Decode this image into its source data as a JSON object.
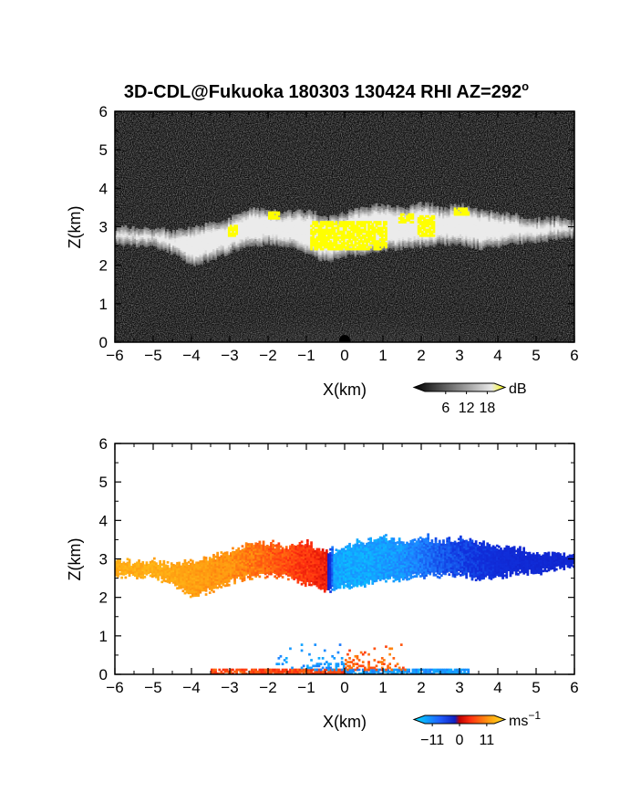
{
  "title": "3D-CDL@Fukuoka 180303 130424 RHI AZ=292",
  "title_superscript": "o",
  "colors": {
    "background_top": "#0b0b0b",
    "echo_gray": "#d8d8d8",
    "echo_yellow": "#ffff00",
    "vel_cyan": "#00d4ff",
    "vel_blue": "#1030e0",
    "vel_red": "#ff2010",
    "vel_orange": "#ff9a10",
    "vel_yellow": "#ffd21a"
  },
  "chart_data": [
    {
      "type": "heatmap",
      "panel": "reflectivity",
      "xlabel": "X(km)",
      "ylabel": "Z(km)",
      "xlim": [
        -6,
        6
      ],
      "ylim": [
        0,
        6
      ],
      "x_ticks": [
        "-6",
        "-5",
        "-4",
        "-3",
        "-2",
        "-1",
        "0",
        "1",
        "2",
        "3",
        "4",
        "5",
        "6"
      ],
      "y_ticks": [
        "0",
        "1",
        "2",
        "3",
        "4",
        "5",
        "6"
      ],
      "colorbar": {
        "unit": "dB",
        "tick_labels": [
          "6",
          "12",
          "18"
        ],
        "range": [
          0,
          20
        ]
      },
      "layer_top_km": [
        [
          -6,
          2.95
        ],
        [
          -5,
          2.95
        ],
        [
          -4.5,
          2.85
        ],
        [
          -4,
          2.95
        ],
        [
          -3,
          3.2
        ],
        [
          -2.5,
          3.45
        ],
        [
          -2,
          3.4
        ],
        [
          -1.5,
          3.35
        ],
        [
          -1,
          3.4
        ],
        [
          -0.5,
          3.2
        ],
        [
          0,
          3.35
        ],
        [
          0.5,
          3.5
        ],
        [
          1,
          3.55
        ],
        [
          1.5,
          3.45
        ],
        [
          2,
          3.6
        ],
        [
          2.5,
          3.45
        ],
        [
          3,
          3.55
        ],
        [
          3.5,
          3.4
        ],
        [
          4,
          3.35
        ],
        [
          4.5,
          3.25
        ],
        [
          5,
          3.15
        ],
        [
          5.5,
          3.2
        ],
        [
          6,
          3.1
        ]
      ],
      "layer_base_km": [
        [
          -6,
          2.55
        ],
        [
          -5,
          2.5
        ],
        [
          -4.5,
          2.3
        ],
        [
          -4,
          2.0
        ],
        [
          -3.5,
          2.15
        ],
        [
          -3,
          2.35
        ],
        [
          -2.5,
          2.5
        ],
        [
          -2,
          2.55
        ],
        [
          -1.5,
          2.5
        ],
        [
          -1,
          2.3
        ],
        [
          -0.5,
          2.1
        ],
        [
          0,
          2.25
        ],
        [
          0.5,
          2.3
        ],
        [
          1,
          2.4
        ],
        [
          1.5,
          2.45
        ],
        [
          2,
          2.5
        ],
        [
          2.5,
          2.55
        ],
        [
          3,
          2.55
        ],
        [
          3.5,
          2.45
        ],
        [
          4,
          2.5
        ],
        [
          4.5,
          2.6
        ],
        [
          5,
          2.6
        ],
        [
          5.5,
          2.7
        ],
        [
          6,
          2.75
        ]
      ],
      "strong_echo_patches_km": [
        {
          "x0": -3.05,
          "x1": -2.85,
          "z0": 2.75,
          "z1": 3.0
        },
        {
          "x0": -2.0,
          "x1": -1.7,
          "z0": 3.2,
          "z1": 3.35
        },
        {
          "x0": -0.9,
          "x1": 1.1,
          "z0": 2.4,
          "z1": 3.1
        },
        {
          "x0": 1.4,
          "x1": 1.8,
          "z0": 3.1,
          "z1": 3.3
        },
        {
          "x0": 1.9,
          "x1": 2.3,
          "z0": 2.75,
          "z1": 3.25
        },
        {
          "x0": 2.85,
          "x1": 3.2,
          "z0": 3.3,
          "z1": 3.45
        }
      ]
    },
    {
      "type": "heatmap",
      "panel": "doppler_velocity",
      "xlabel": "X(km)",
      "ylabel": "Z(km)",
      "xlim": [
        -6,
        6
      ],
      "ylim": [
        0,
        6
      ],
      "x_ticks": [
        "-6",
        "-5",
        "-4",
        "-3",
        "-2",
        "-1",
        "0",
        "1",
        "2",
        "3",
        "4",
        "5",
        "6"
      ],
      "y_ticks": [
        "0",
        "1",
        "2",
        "3",
        "4",
        "5",
        "6"
      ],
      "colorbar": {
        "unit": "ms",
        "unit_superscript": "−1",
        "tick_labels": [
          "−11",
          "0",
          "11"
        ],
        "range": [
          -14,
          14
        ]
      },
      "velocity_by_x_ms": [
        [
          -6,
          9
        ],
        [
          -5,
          9
        ],
        [
          -4,
          8
        ],
        [
          -3,
          7
        ],
        [
          -2,
          5
        ],
        [
          -1,
          3
        ],
        [
          -0.5,
          2
        ],
        [
          -0.3,
          -11
        ],
        [
          0.5,
          -11
        ],
        [
          1.5,
          -10
        ],
        [
          2.5,
          -7
        ],
        [
          3.5,
          -5
        ],
        [
          4.5,
          -3
        ],
        [
          6,
          -2
        ]
      ],
      "near_surface": [
        {
          "x0": -3.5,
          "x1": 0,
          "z0": 0,
          "z1": 0.15,
          "velocity": 4
        },
        {
          "x0": 0,
          "x1": 3.2,
          "z0": 0,
          "z1": 0.15,
          "velocity": -10
        },
        {
          "x0": -1.8,
          "x1": 0,
          "z0": 0.1,
          "z1": 0.8,
          "velocity": -10
        },
        {
          "x0": 0,
          "x1": 1.6,
          "z0": 0.1,
          "z1": 0.8,
          "velocity": 5
        }
      ]
    }
  ]
}
